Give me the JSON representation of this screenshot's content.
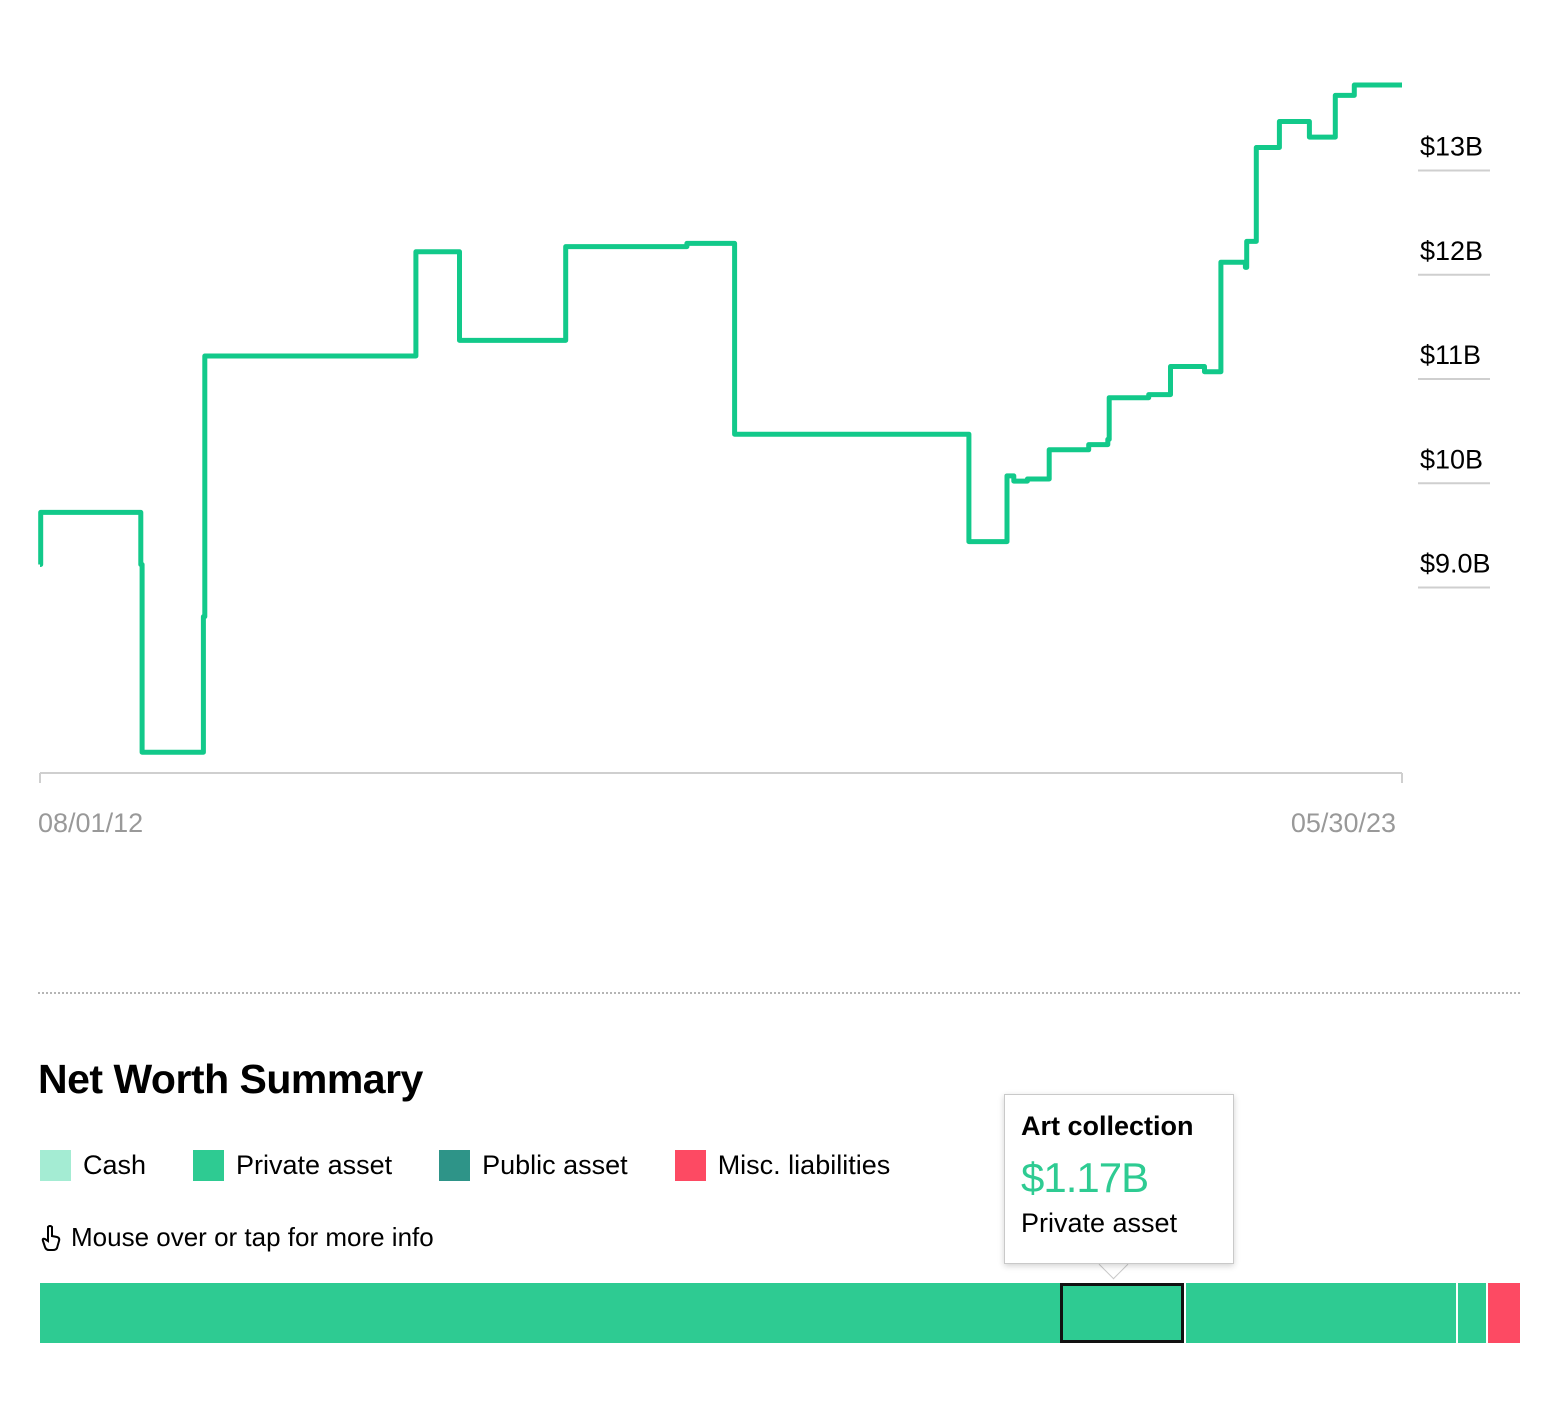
{
  "chart_data": {
    "type": "line",
    "y_tick_labels": [
      "$13B",
      "$12B",
      "$11B",
      "$10B",
      "$9.0B"
    ],
    "y_ticks": [
      13,
      12,
      11,
      10,
      9
    ],
    "ylim": [
      7,
      13.2
    ],
    "x_tick_labels": [
      "08/01/12",
      "05/30/23"
    ],
    "x_range": [
      0,
      100
    ],
    "line_color": "#12c98a",
    "series": [
      {
        "x": [
          0,
          0.05,
          3.6,
          7.4,
          7.5,
          9.0,
          12.0,
          12.1,
          27.5,
          27.6,
          30.7,
          30.8,
          38.4,
          38.6,
          45.0,
          47.5,
          50.9,
          51.0,
          57.0,
          64.6,
          64.7,
          68.2,
          68.3,
          69.3,
          71.0,
          71.5,
          72.5,
          74.1,
          77.0,
          78.4,
          78.5,
          81.4,
          82.5,
          83.0,
          84.0,
          85.5,
          86.6,
          86.7,
          88.5,
          88.6,
          89.2,
          89.3,
          90.9,
          91.0,
          93.0,
          93.2,
          95.0,
          95.1,
          96.4,
          96.5,
          98.0,
          98.1,
          98.6,
          100
        ],
        "y": [
          9.0,
          9.5,
          9.5,
          9.0,
          7.2,
          7.2,
          8.5,
          11.0,
          11.0,
          12.0,
          12.0,
          11.15,
          11.15,
          12.05,
          12.05,
          12.08,
          12.08,
          10.25,
          10.25,
          10.25,
          10.25,
          9.22,
          9.22,
          9.22,
          9.85,
          9.8,
          9.82,
          10.1,
          10.15,
          10.2,
          10.6,
          10.63,
          10.63,
          10.9,
          10.9,
          10.85,
          10.85,
          11.9,
          11.85,
          12.1,
          12.1,
          13.0,
          13.0,
          13.25,
          13.25,
          13.1,
          13.1,
          13.5,
          13.5,
          13.6,
          13.6,
          13.6,
          13.6,
          13.6
        ]
      }
    ],
    "grid": false
  },
  "summary": {
    "title": "Net Worth Summary",
    "legend": [
      {
        "label": "Cash",
        "color": "#a4ecd3"
      },
      {
        "label": "Private asset",
        "color": "#2ecb92"
      },
      {
        "label": "Public asset",
        "color": "#2e9488"
      },
      {
        "label": "Misc. liabilities",
        "color": "#fd4a63"
      }
    ],
    "hint": "Mouse over or tap for more info",
    "hint_icon": "pointer-hand-icon",
    "segments": [
      {
        "category": "Private asset",
        "share": 0.689,
        "color": "#2ecb92"
      },
      {
        "category": "Private asset",
        "share": 0.084,
        "color": "#2ecb92",
        "selected": true
      },
      {
        "category": "Private asset",
        "share": 0.184,
        "color": "#2ecb92"
      },
      {
        "category": "Private asset",
        "share": 0.02,
        "color": "#2ecb92"
      },
      {
        "category": "Misc. liabilities",
        "share": 0.023,
        "color": "#fd4a63"
      }
    ],
    "tooltip": {
      "title": "Art collection",
      "value": "$1.17B",
      "type": "Private asset",
      "value_color": "#2ecb92"
    }
  }
}
